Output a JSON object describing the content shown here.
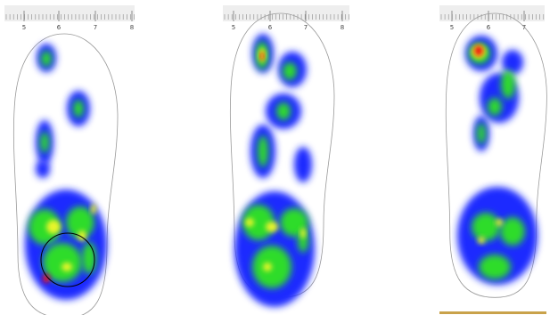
{
  "panels": [
    {
      "ruler_labels": [
        "5",
        "6",
        "7",
        "8"
      ]
    },
    {
      "ruler_labels": [
        "5",
        "6",
        "7",
        "8"
      ]
    },
    {
      "ruler_labels": [
        "5",
        "6",
        "7"
      ]
    }
  ]
}
